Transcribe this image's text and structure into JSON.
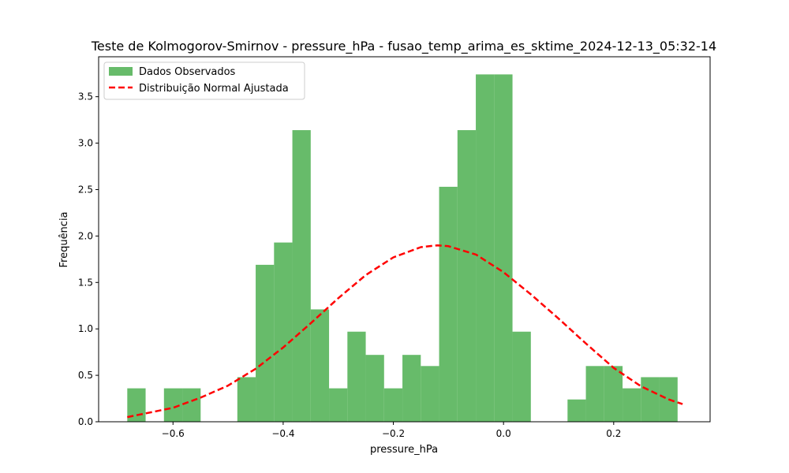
{
  "chart_data": {
    "type": "bar",
    "title": "Teste de Kolmogorov-Smirnov - pressure_hPa - fusao_temp_arima_es_sktime_2024-12-13_05:32-14",
    "xlabel": "pressure_hPa",
    "ylabel": "Frequência",
    "xlim": [
      -0.735,
      0.375
    ],
    "ylim": [
      0,
      3.93
    ],
    "xticks": [
      -0.6,
      -0.4,
      -0.2,
      0.0,
      0.2
    ],
    "xtick_labels": [
      "−0.6",
      "−0.4",
      "−0.2",
      "0.0",
      "0.2"
    ],
    "yticks": [
      0.0,
      0.5,
      1.0,
      1.5,
      2.0,
      2.5,
      3.0,
      3.5
    ],
    "ytick_labels": [
      "0.0",
      "0.5",
      "1.0",
      "1.5",
      "2.0",
      "2.5",
      "3.0",
      "3.5"
    ],
    "grid": false,
    "legend_position": "upper-left",
    "series": [
      {
        "name": "Dados Observados",
        "kind": "histogram",
        "color": "#4caf50",
        "bin_edges": [
          -0.683,
          -0.6497,
          -0.6164,
          -0.5831,
          -0.5498,
          -0.5165,
          -0.4832,
          -0.4499,
          -0.4166,
          -0.3833,
          -0.35,
          -0.3167,
          -0.2834,
          -0.2501,
          -0.2168,
          -0.1835,
          -0.1502,
          -0.1169,
          -0.0836,
          -0.0503,
          -0.017,
          0.0163,
          0.0496,
          0.0829,
          0.1162,
          0.1495,
          0.1828,
          0.2161,
          0.2494,
          0.2827,
          0.316
        ],
        "values": [
          0.36,
          0,
          0.36,
          0.36,
          0,
          0,
          0.48,
          1.69,
          1.93,
          3.14,
          1.21,
          0.36,
          0.97,
          0.72,
          0.36,
          0.72,
          0.6,
          2.53,
          3.14,
          3.74,
          3.74,
          0.97,
          0,
          0,
          0.24,
          0.6,
          0.6,
          0.36,
          0.48,
          0.48
        ]
      },
      {
        "name": "Distribuição Normal Ajustada",
        "kind": "line",
        "color": "#ff0000",
        "style": "dashed",
        "x": [
          -0.683,
          -0.6,
          -0.55,
          -0.5,
          -0.45,
          -0.4,
          -0.35,
          -0.3,
          -0.25,
          -0.2,
          -0.15,
          -0.12,
          -0.1,
          -0.05,
          0.0,
          0.05,
          0.1,
          0.15,
          0.2,
          0.25,
          0.3,
          0.325
        ],
        "y": [
          0.05,
          0.15,
          0.26,
          0.39,
          0.57,
          0.8,
          1.06,
          1.33,
          1.58,
          1.77,
          1.88,
          1.9,
          1.89,
          1.8,
          1.61,
          1.37,
          1.11,
          0.84,
          0.58,
          0.38,
          0.24,
          0.19
        ]
      }
    ]
  }
}
